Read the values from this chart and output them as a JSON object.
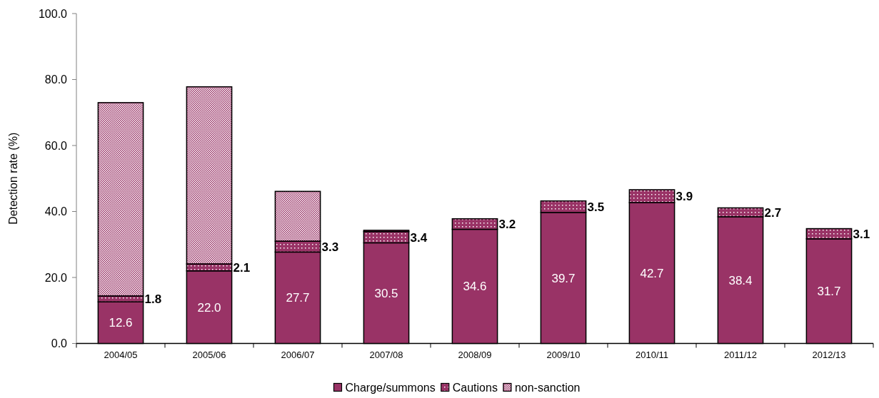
{
  "chart_data": {
    "type": "bar",
    "stacked": true,
    "ylabel": "Detection rate (%)",
    "categories": [
      "2004/05",
      "2005/06",
      "2006/07",
      "2007/08",
      "2008/09",
      "2009/10",
      "2010/11",
      "2011/12",
      "2012/13"
    ],
    "series": [
      {
        "name": "Charge/summons",
        "color": "#993366",
        "values": [
          12.6,
          22.0,
          27.7,
          30.5,
          34.6,
          39.7,
          42.7,
          38.4,
          31.7
        ],
        "value_labels": [
          "12.6",
          "22.0",
          "27.7",
          "30.5",
          "34.6",
          "39.7",
          "42.7",
          "38.4",
          "31.7"
        ]
      },
      {
        "name": "Cautions",
        "color": "#993366",
        "values": [
          1.8,
          2.1,
          3.3,
          3.4,
          3.2,
          3.5,
          3.9,
          2.7,
          3.1
        ],
        "value_labels": [
          "1.8",
          "2.1",
          "3.3",
          "3.4",
          "3.2",
          "3.5",
          "3.9",
          "2.7",
          "3.1"
        ]
      },
      {
        "name": "non-sanction",
        "color": "#993366",
        "values": [
          58.6,
          53.7,
          15.1,
          0.4,
          null,
          null,
          null,
          null,
          null
        ]
      }
    ],
    "ylim": [
      0,
      100
    ],
    "yticks": [
      {
        "value": 0,
        "label": "0.0"
      },
      {
        "value": 20,
        "label": "20.0"
      },
      {
        "value": 40,
        "label": "40.0"
      },
      {
        "value": 60,
        "label": "60.0"
      },
      {
        "value": 80,
        "label": "80.0"
      },
      {
        "value": 100,
        "label": "100.0"
      }
    ],
    "legend": "bottom"
  }
}
